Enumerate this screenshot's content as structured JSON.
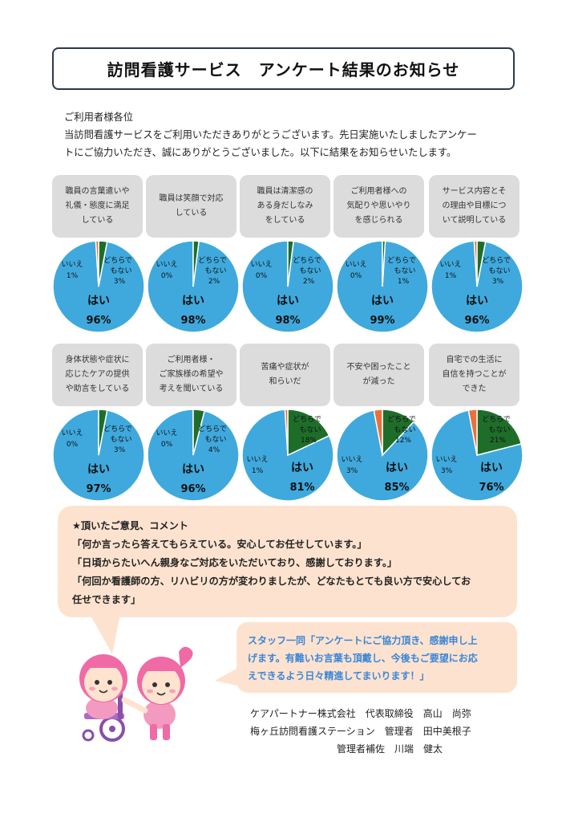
{
  "title": "訪問看護サービス　アンケート結果のお知らせ",
  "intro": {
    "salutation": "ご利用者様各位",
    "line1": "当訪問看護サービスをご利用いただきありがとうございます。先日実施いたしましたアンケー",
    "line2": "トにご協力いただき、誠にありがとうございました。以下に結果をお知らせいたします。"
  },
  "chart_data": [
    {
      "type": "pie",
      "title": "職員の言葉遣いや\n礼儀・態度に満足\nしている",
      "slices": [
        {
          "label": "はい",
          "value": 96
        },
        {
          "label": "どちらでもない",
          "value": 3
        },
        {
          "label": "いいえ",
          "value": 1
        }
      ]
    },
    {
      "type": "pie",
      "title": "職員は笑顔で対応\nしている",
      "slices": [
        {
          "label": "はい",
          "value": 98
        },
        {
          "label": "どちらでもない",
          "value": 2
        },
        {
          "label": "いいえ",
          "value": 0
        }
      ]
    },
    {
      "type": "pie",
      "title": "職員は清潔感の\nある身だしなみ\nをしている",
      "slices": [
        {
          "label": "はい",
          "value": 98
        },
        {
          "label": "どちらでもない",
          "value": 2
        },
        {
          "label": "いいえ",
          "value": 0
        }
      ]
    },
    {
      "type": "pie",
      "title": "ご利用者様への\n気配りや思いやり\nを感じられる",
      "slices": [
        {
          "label": "はい",
          "value": 99
        },
        {
          "label": "どちらでもない",
          "value": 1
        },
        {
          "label": "いいえ",
          "value": 0
        }
      ]
    },
    {
      "type": "pie",
      "title": "サービス内容とそ\nの理由や目標につ\nいて説明している",
      "slices": [
        {
          "label": "はい",
          "value": 96
        },
        {
          "label": "どちらでもない",
          "value": 3
        },
        {
          "label": "いいえ",
          "value": 1
        }
      ]
    },
    {
      "type": "pie",
      "title": "身体状態や症状に\n応じたケアの提供\nや助言をしている",
      "slices": [
        {
          "label": "はい",
          "value": 97
        },
        {
          "label": "どちらでもない",
          "value": 3
        },
        {
          "label": "いいえ",
          "value": 0
        }
      ]
    },
    {
      "type": "pie",
      "title": "ご利用者様・\nご家族様の希望や\n考えを聞いている",
      "slices": [
        {
          "label": "はい",
          "value": 96
        },
        {
          "label": "どちらでもない",
          "value": 4
        },
        {
          "label": "いいえ",
          "value": 0
        }
      ]
    },
    {
      "type": "pie",
      "title": "苦痛や症状が\n和らいだ",
      "slices": [
        {
          "label": "はい",
          "value": 81
        },
        {
          "label": "どちらでもない",
          "value": 18
        },
        {
          "label": "いいえ",
          "value": 1
        }
      ]
    },
    {
      "type": "pie",
      "title": "不安や困ったこと\nが減った",
      "slices": [
        {
          "label": "はい",
          "value": 85
        },
        {
          "label": "どちらでもない",
          "value": 12
        },
        {
          "label": "いいえ",
          "value": 3
        }
      ]
    },
    {
      "type": "pie",
      "title": "自宅での生活に\n自信を持つことが\nできた",
      "slices": [
        {
          "label": "はい",
          "value": 76
        },
        {
          "label": "どちらでもない",
          "value": 21
        },
        {
          "label": "いいえ",
          "value": 3
        }
      ]
    }
  ],
  "pie_labels": {
    "yes": "はい",
    "neutral_line1": "どちらで",
    "neutral_line2": "もない",
    "no": "いいえ"
  },
  "colors": {
    "yes": "#3fa9dd",
    "neutral": "#1e6e2a",
    "no": "#e8713c",
    "bubble": "#fde3cf",
    "staff_text": "#3a86d8"
  },
  "comments": {
    "heading": "★頂いたご意見、コメント",
    "items": [
      "「何か言ったら答えてもらえている。安心してお任せしています。」",
      "「日頃からたいへん親身なご対応をいただいており、感謝しております。」",
      "「何回か看護師の方、リハビリの方が変わりましたが、どなたもとても良い方で安心してお",
      "任せできます」"
    ]
  },
  "staff_message": {
    "line1": "スタッフ一同「アンケートにご協力頂き、感謝申し上",
    "line2": "げます。有難いお言葉も頂戴し、今後もご要望にお応",
    "line3": "えできるよう日々精進してまいります！」"
  },
  "signature": {
    "line1": "ケアパートナー株式会社　代表取締役　高山　尚弥",
    "line2": "梅ヶ丘訪問看護ステーション　管理者　田中美根子",
    "line3": "　　　　　　　　　管理者補佐　川端　健太"
  },
  "mascot": {
    "icon": "nurse-mascot-illustration"
  }
}
